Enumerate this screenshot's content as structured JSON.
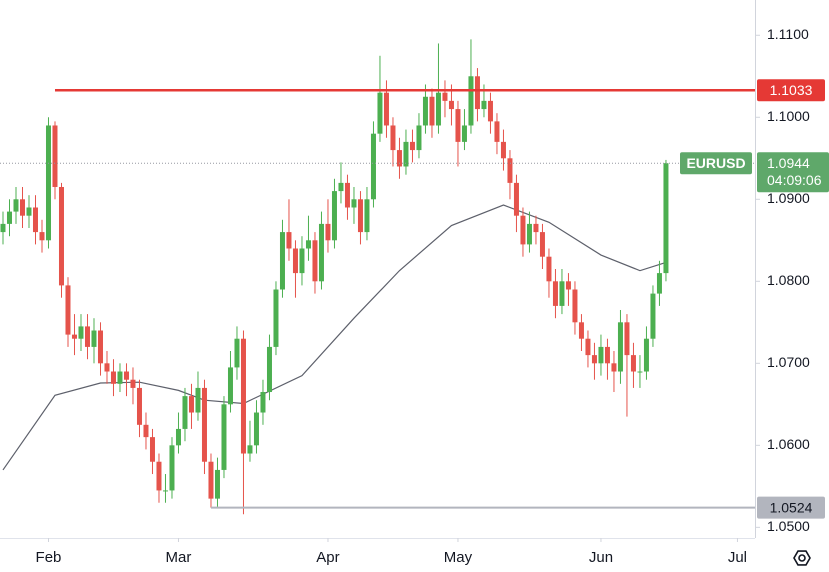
{
  "chart_data": {
    "type": "candlestick",
    "symbol": "EURUSD",
    "up_color": "#4caf50",
    "down_color": "#e5534b",
    "x": [
      0,
      1,
      2,
      3,
      4,
      5,
      6,
      7,
      8,
      9,
      10,
      11,
      12,
      13,
      14,
      15,
      16,
      17,
      18,
      19,
      20,
      21,
      22,
      23,
      24,
      25,
      26,
      27,
      28,
      29,
      30,
      31,
      32,
      33,
      34,
      35,
      36,
      37,
      38,
      39,
      40,
      41,
      42,
      43,
      44,
      45,
      46,
      47,
      48,
      49,
      50,
      51,
      52,
      53,
      54,
      55,
      56,
      57,
      58,
      59,
      60,
      61,
      62,
      63,
      64,
      65,
      66,
      67,
      68,
      69,
      70,
      71,
      72,
      73,
      74,
      75,
      76,
      77,
      78,
      79,
      80,
      81,
      82,
      83,
      84,
      85,
      86,
      87,
      88,
      89,
      90,
      91,
      92,
      93,
      94,
      95,
      96,
      97,
      98,
      99,
      100,
      101,
      102
    ],
    "open": [
      1.086,
      1.087,
      1.0885,
      1.09,
      1.088,
      1.089,
      1.086,
      1.085,
      1.099,
      1.0915,
      1.0795,
      1.0735,
      1.073,
      1.0745,
      1.072,
      1.074,
      1.07,
      1.069,
      1.0675,
      1.069,
      1.068,
      1.067,
      1.0625,
      1.061,
      1.058,
      1.0545,
      1.0545,
      1.06,
      1.062,
      1.066,
      1.064,
      1.067,
      1.058,
      1.0535,
      1.057,
      1.065,
      1.0695,
      1.073,
      1.059,
      1.06,
      1.064,
      1.0665,
      1.072,
      1.079,
      1.086,
      1.084,
      1.081,
      1.084,
      1.085,
      1.08,
      1.087,
      1.085,
      1.091,
      1.092,
      1.089,
      1.09,
      1.086,
      1.09,
      1.098,
      1.103,
      1.099,
      1.096,
      1.094,
      1.097,
      1.096,
      1.099,
      1.1025,
      1.099,
      1.103,
      1.102,
      1.101,
      1.097,
      1.099,
      1.105,
      1.101,
      1.102,
      1.0995,
      1.097,
      1.095,
      1.092,
      1.088,
      1.0845,
      1.087,
      1.086,
      1.083,
      1.08,
      1.077,
      1.08,
      1.079,
      1.075,
      1.073,
      1.071,
      1.07,
      1.072,
      1.07,
      1.069,
      1.075,
      1.071,
      1.069,
      1.069,
      1.073,
      1.0785,
      1.081
    ],
    "high": [
      1.0885,
      1.09,
      1.0915,
      1.0915,
      1.0905,
      1.0905,
      1.0875,
      1.1,
      1.0995,
      1.092,
      1.0805,
      1.076,
      1.076,
      1.076,
      1.0755,
      1.075,
      1.0715,
      1.0705,
      1.07,
      1.07,
      1.0695,
      1.068,
      1.064,
      1.062,
      1.059,
      1.0565,
      1.061,
      1.064,
      1.067,
      1.0675,
      1.069,
      1.068,
      1.059,
      1.0585,
      1.066,
      1.0715,
      1.0745,
      1.074,
      1.063,
      1.0655,
      1.068,
      1.0735,
      1.08,
      1.0875,
      1.09,
      1.085,
      1.0855,
      1.088,
      1.086,
      1.0885,
      1.09,
      1.0925,
      1.0945,
      1.093,
      1.0915,
      1.091,
      1.0915,
      1.0995,
      1.1075,
      1.1045,
      1.1,
      1.0975,
      1.0985,
      1.0985,
      1.1005,
      1.104,
      1.1035,
      1.109,
      1.1045,
      1.104,
      1.102,
      1.101,
      1.1095,
      1.106,
      1.104,
      1.103,
      1.1005,
      1.0985,
      1.096,
      1.093,
      1.089,
      1.0885,
      1.088,
      1.087,
      1.084,
      1.0815,
      1.0815,
      1.081,
      1.08,
      1.076,
      1.074,
      1.0725,
      1.0735,
      1.073,
      1.0715,
      1.0765,
      1.076,
      1.0725,
      1.071,
      1.0745,
      1.0795,
      1.0825,
      1.0948
    ],
    "low": [
      1.0845,
      1.0855,
      1.087,
      1.0865,
      1.0865,
      1.0845,
      1.0835,
      1.084,
      1.09,
      1.078,
      1.072,
      1.071,
      1.0715,
      1.0705,
      1.07,
      1.0685,
      1.0675,
      1.066,
      1.0665,
      1.066,
      1.065,
      1.061,
      1.0595,
      1.0565,
      1.053,
      1.053,
      1.0535,
      1.059,
      1.0605,
      1.062,
      1.063,
      1.0565,
      1.0524,
      1.0525,
      1.056,
      1.064,
      1.068,
      1.0516,
      1.058,
      1.059,
      1.0625,
      1.0655,
      1.071,
      1.078,
      1.0825,
      1.078,
      1.0795,
      1.0825,
      1.0785,
      1.079,
      1.0835,
      1.084,
      1.0895,
      1.0875,
      1.087,
      1.0845,
      1.085,
      1.089,
      1.097,
      1.0975,
      1.094,
      1.0925,
      1.093,
      1.0945,
      1.095,
      1.098,
      1.0975,
      1.098,
      1.1,
      1.099,
      1.094,
      1.096,
      1.098,
      1.0995,
      1.1,
      1.098,
      1.0955,
      1.0935,
      1.09,
      1.086,
      1.083,
      1.0835,
      1.0845,
      1.0815,
      1.078,
      1.0755,
      1.076,
      1.077,
      1.0735,
      1.0715,
      1.0695,
      1.068,
      1.0685,
      1.068,
      1.0665,
      1.0675,
      1.0635,
      1.067,
      1.067,
      1.068,
      1.072,
      1.077,
      1.08
    ],
    "close": [
      1.087,
      1.0885,
      1.09,
      1.088,
      1.089,
      1.086,
      1.085,
      1.099,
      1.0915,
      1.0795,
      1.0735,
      1.073,
      1.0745,
      1.072,
      1.074,
      1.07,
      1.069,
      1.0675,
      1.069,
      1.068,
      1.067,
      1.0625,
      1.061,
      1.058,
      1.0545,
      1.0545,
      1.06,
      1.062,
      1.066,
      1.064,
      1.067,
      1.058,
      1.0535,
      1.057,
      1.065,
      1.0695,
      1.073,
      1.059,
      1.06,
      1.064,
      1.0665,
      1.072,
      1.079,
      1.086,
      1.084,
      1.081,
      1.084,
      1.085,
      1.08,
      1.087,
      1.085,
      1.091,
      1.092,
      1.089,
      1.09,
      1.086,
      1.09,
      1.098,
      1.103,
      1.099,
      1.096,
      1.094,
      1.097,
      1.096,
      1.099,
      1.1025,
      1.099,
      1.103,
      1.102,
      1.101,
      1.097,
      1.099,
      1.105,
      1.101,
      1.102,
      1.0995,
      1.097,
      1.095,
      1.092,
      1.088,
      1.0845,
      1.087,
      1.086,
      1.083,
      1.08,
      1.077,
      1.08,
      1.079,
      1.075,
      1.073,
      1.071,
      1.07,
      1.072,
      1.07,
      1.069,
      1.075,
      1.071,
      1.069,
      1.069,
      1.073,
      1.0785,
      1.081,
      1.0944
    ],
    "moving_average": {
      "color": "#5d606b",
      "x": [
        0,
        8,
        15,
        21,
        27,
        31,
        37,
        46,
        54,
        61,
        69,
        77,
        84,
        92,
        98,
        102
      ],
      "values": [
        1.057,
        1.0661,
        1.0676,
        1.0677,
        1.0667,
        1.0655,
        1.0651,
        1.0685,
        1.0755,
        1.0813,
        1.0868,
        1.0893,
        1.0872,
        1.0832,
        1.0813,
        1.0823
      ]
    },
    "levels": [
      {
        "value": 1.1033,
        "label": "1.1033",
        "from_x": 8,
        "color": "#e53935"
      },
      {
        "value": 1.0524,
        "label": "1.0524",
        "from_x": 32,
        "color": "#b2b5be"
      }
    ],
    "last_price": {
      "value": 1.0944,
      "label": "1.0944",
      "countdown": "04:09:06",
      "color": "#5fa86a"
    },
    "xlim": [
      -0.46,
      115.7
    ],
    "ylim": [
      1.0487,
      1.1143
    ],
    "xticks": [
      {
        "value": 7,
        "label": "Feb"
      },
      {
        "value": 27,
        "label": "Mar"
      },
      {
        "value": 50,
        "label": "Apr"
      },
      {
        "value": 70,
        "label": "May"
      },
      {
        "value": 92,
        "label": "Jun"
      },
      {
        "value": 113,
        "label": "Jul"
      }
    ],
    "yticks": [
      {
        "value": 1.05,
        "label": "1.0500"
      },
      {
        "value": 1.06,
        "label": "1.0600"
      },
      {
        "value": 1.07,
        "label": "1.0700"
      },
      {
        "value": 1.08,
        "label": "1.0800"
      },
      {
        "value": 1.09,
        "label": "1.0900"
      },
      {
        "value": 1.1,
        "label": "1.1000"
      },
      {
        "value": 1.11,
        "label": "1.1100"
      }
    ]
  }
}
